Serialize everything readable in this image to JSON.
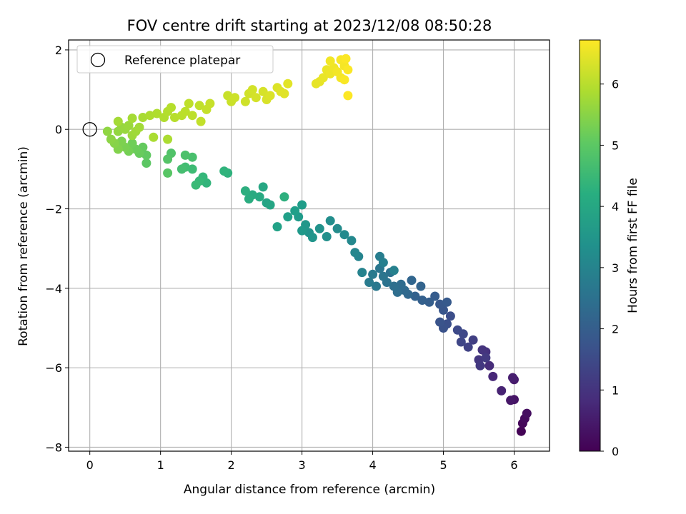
{
  "chart_data": {
    "type": "scatter",
    "title": "FOV centre drift starting at 2023/12/08 08:50:28",
    "xlabel": "Angular distance from reference (arcmin)",
    "ylabel": "Rotation from reference (arcmin)",
    "xlim": [
      -0.3,
      6.5
    ],
    "ylim": [
      -8.1,
      2.25
    ],
    "xticks": [
      0,
      1,
      2,
      3,
      4,
      5,
      6
    ],
    "yticks": [
      -8,
      -6,
      -4,
      -2,
      0,
      2
    ],
    "xtick_labels": [
      "0",
      "1",
      "2",
      "3",
      "4",
      "5",
      "6"
    ],
    "ytick_labels": [
      "−8",
      "−6",
      "−4",
      "−2",
      "0",
      "2"
    ],
    "grid": true,
    "legend": {
      "position": "top-left",
      "entries": [
        "Reference platepar"
      ]
    },
    "reference_point": {
      "x": 0,
      "y": 0,
      "marker": "open-circle"
    },
    "colorbar": {
      "label": "Hours from first FF file",
      "colormap": "viridis",
      "range": [
        0,
        6.72
      ],
      "ticks": [
        0,
        1,
        2,
        3,
        4,
        5,
        6
      ],
      "tick_labels": [
        "0",
        "1",
        "2",
        "3",
        "4",
        "5",
        "6"
      ]
    },
    "series": [
      {
        "color_by": "hours",
        "points": [
          [
            6.1,
            -7.6,
            0.05
          ],
          [
            6.12,
            -7.4,
            0.12
          ],
          [
            6.15,
            -7.28,
            0.18
          ],
          [
            6.18,
            -7.15,
            0.24
          ],
          [
            6.0,
            -6.8,
            0.35
          ],
          [
            5.95,
            -6.82,
            0.42
          ],
          [
            6.0,
            -6.3,
            0.5
          ],
          [
            5.98,
            -6.25,
            0.55
          ],
          [
            5.82,
            -6.58,
            0.65
          ],
          [
            5.7,
            -6.22,
            0.75
          ],
          [
            5.65,
            -5.95,
            0.85
          ],
          [
            5.6,
            -5.6,
            0.95
          ],
          [
            5.55,
            -5.55,
            1.0
          ],
          [
            5.5,
            -5.8,
            1.05
          ],
          [
            5.52,
            -5.95,
            1.1
          ],
          [
            5.6,
            -5.75,
            1.15
          ],
          [
            5.42,
            -5.3,
            1.25
          ],
          [
            5.35,
            -5.48,
            1.32
          ],
          [
            5.25,
            -5.35,
            1.4
          ],
          [
            5.28,
            -5.15,
            1.45
          ],
          [
            5.2,
            -5.05,
            1.5
          ],
          [
            5.1,
            -4.7,
            1.6
          ],
          [
            5.05,
            -4.9,
            1.65
          ],
          [
            5.0,
            -5.0,
            1.7
          ],
          [
            4.95,
            -4.85,
            1.75
          ],
          [
            5.0,
            -4.55,
            1.8
          ],
          [
            4.95,
            -4.4,
            1.85
          ],
          [
            5.05,
            -4.35,
            1.9
          ],
          [
            4.88,
            -4.2,
            1.95
          ],
          [
            4.8,
            -4.35,
            2.0
          ],
          [
            4.7,
            -4.3,
            2.05
          ],
          [
            4.6,
            -4.2,
            2.1
          ],
          [
            4.68,
            -3.95,
            2.15
          ],
          [
            4.55,
            -3.8,
            2.2
          ],
          [
            4.5,
            -4.15,
            2.25
          ],
          [
            4.45,
            -4.05,
            2.3
          ],
          [
            4.4,
            -3.9,
            2.35
          ],
          [
            4.35,
            -4.1,
            2.4
          ],
          [
            4.3,
            -3.95,
            2.45
          ],
          [
            4.25,
            -3.6,
            2.5
          ],
          [
            4.2,
            -3.85,
            2.55
          ],
          [
            4.15,
            -3.7,
            2.6
          ],
          [
            4.1,
            -3.5,
            2.65
          ],
          [
            4.05,
            -3.95,
            2.7
          ],
          [
            4.0,
            -3.65,
            2.75
          ],
          [
            3.95,
            -3.85,
            2.8
          ],
          [
            4.1,
            -3.2,
            2.85
          ],
          [
            4.15,
            -3.35,
            2.9
          ],
          [
            4.3,
            -3.55,
            2.95
          ],
          [
            3.85,
            -3.6,
            3.0
          ],
          [
            3.8,
            -3.2,
            3.05
          ],
          [
            3.75,
            -3.1,
            3.1
          ],
          [
            3.7,
            -2.8,
            3.15
          ],
          [
            3.6,
            -2.65,
            3.2
          ],
          [
            3.5,
            -2.5,
            3.25
          ],
          [
            3.4,
            -2.3,
            3.3
          ],
          [
            3.35,
            -2.7,
            3.35
          ],
          [
            3.25,
            -2.5,
            3.4
          ],
          [
            3.1,
            -2.6,
            3.45
          ],
          [
            3.15,
            -2.72,
            3.5
          ],
          [
            3.05,
            -2.4,
            3.55
          ],
          [
            3.0,
            -2.55,
            3.6
          ],
          [
            2.95,
            -2.2,
            3.65
          ],
          [
            3.0,
            -1.9,
            3.7
          ],
          [
            2.9,
            -2.05,
            3.75
          ],
          [
            2.8,
            -2.2,
            3.8
          ],
          [
            2.65,
            -2.45,
            3.85
          ],
          [
            2.5,
            -1.85,
            3.9
          ],
          [
            2.55,
            -1.9,
            3.95
          ],
          [
            2.45,
            -1.45,
            4.0
          ],
          [
            2.4,
            -1.7,
            4.05
          ],
          [
            2.3,
            -1.65,
            4.1
          ],
          [
            2.25,
            -1.75,
            4.15
          ],
          [
            2.2,
            -1.55,
            4.2
          ],
          [
            2.75,
            -1.7,
            4.25
          ],
          [
            1.95,
            -1.1,
            4.3
          ],
          [
            1.9,
            -1.05,
            4.35
          ],
          [
            1.65,
            -1.35,
            4.4
          ],
          [
            1.6,
            -1.2,
            4.45
          ],
          [
            1.55,
            -1.3,
            4.5
          ],
          [
            1.5,
            -1.4,
            4.55
          ],
          [
            1.45,
            -1.0,
            4.6
          ],
          [
            1.35,
            -0.95,
            4.65
          ],
          [
            1.3,
            -1.0,
            4.7
          ],
          [
            1.45,
            -0.7,
            4.75
          ],
          [
            1.35,
            -0.65,
            4.8
          ],
          [
            1.15,
            -0.6,
            4.85
          ],
          [
            1.1,
            -0.75,
            4.9
          ],
          [
            1.1,
            -1.1,
            4.95
          ],
          [
            0.8,
            -0.85,
            5.0
          ],
          [
            0.8,
            -0.65,
            5.05
          ],
          [
            0.75,
            -0.45,
            5.1
          ],
          [
            0.7,
            -0.6,
            5.15
          ],
          [
            0.65,
            -0.5,
            5.2
          ],
          [
            0.6,
            -0.35,
            5.25
          ],
          [
            0.55,
            -0.55,
            5.3
          ],
          [
            0.5,
            -0.45,
            5.35
          ],
          [
            0.45,
            -0.3,
            5.4
          ],
          [
            0.4,
            -0.5,
            5.45
          ],
          [
            0.35,
            -0.35,
            5.5
          ],
          [
            0.3,
            -0.25,
            5.55
          ],
          [
            0.25,
            -0.05,
            5.6
          ],
          [
            0.4,
            -0.05,
            5.62
          ],
          [
            0.45,
            0.05,
            5.65
          ],
          [
            0.5,
            0.0,
            5.68
          ],
          [
            0.55,
            0.1,
            5.7
          ],
          [
            0.6,
            -0.15,
            5.72
          ],
          [
            0.65,
            -0.05,
            5.75
          ],
          [
            0.7,
            0.05,
            5.78
          ],
          [
            0.4,
            0.2,
            5.8
          ],
          [
            0.6,
            0.28,
            5.82
          ],
          [
            0.75,
            0.3,
            5.85
          ],
          [
            0.9,
            -0.2,
            5.87
          ],
          [
            1.1,
            -0.25,
            5.88
          ],
          [
            0.85,
            0.35,
            5.9
          ],
          [
            0.95,
            0.4,
            5.92
          ],
          [
            1.05,
            0.3,
            5.94
          ],
          [
            1.1,
            0.45,
            5.96
          ],
          [
            1.15,
            0.55,
            5.98
          ],
          [
            1.2,
            0.3,
            6.0
          ],
          [
            1.3,
            0.35,
            6.02
          ],
          [
            1.35,
            0.45,
            6.04
          ],
          [
            1.45,
            0.35,
            6.06
          ],
          [
            1.4,
            0.65,
            6.08
          ],
          [
            1.55,
            0.6,
            6.1
          ],
          [
            1.57,
            0.2,
            6.12
          ],
          [
            1.65,
            0.5,
            6.14
          ],
          [
            1.7,
            0.65,
            6.16
          ],
          [
            1.95,
            0.85,
            6.18
          ],
          [
            2.0,
            0.7,
            6.2
          ],
          [
            2.05,
            0.8,
            6.22
          ],
          [
            2.2,
            0.7,
            6.24
          ],
          [
            2.25,
            0.9,
            6.26
          ],
          [
            2.3,
            1.0,
            6.28
          ],
          [
            2.35,
            0.8,
            6.3
          ],
          [
            2.45,
            0.95,
            6.32
          ],
          [
            2.5,
            0.75,
            6.34
          ],
          [
            2.55,
            0.85,
            6.36
          ],
          [
            2.65,
            1.05,
            6.38
          ],
          [
            2.7,
            0.95,
            6.4
          ],
          [
            2.75,
            0.9,
            6.42
          ],
          [
            2.8,
            1.15,
            6.44
          ],
          [
            3.2,
            1.15,
            6.48
          ],
          [
            3.25,
            1.2,
            6.5
          ],
          [
            3.3,
            1.3,
            6.52
          ],
          [
            3.35,
            1.5,
            6.54
          ],
          [
            3.4,
            1.4,
            6.56
          ],
          [
            3.45,
            1.55,
            6.58
          ],
          [
            3.4,
            1.72,
            6.6
          ],
          [
            3.5,
            1.45,
            6.62
          ],
          [
            3.55,
            1.3,
            6.63
          ],
          [
            3.6,
            1.6,
            6.64
          ],
          [
            3.55,
            1.75,
            6.66
          ],
          [
            3.6,
            1.25,
            6.68
          ],
          [
            3.65,
            1.5,
            6.69
          ],
          [
            3.62,
            1.78,
            6.7
          ],
          [
            3.65,
            0.85,
            6.71
          ]
        ]
      }
    ]
  }
}
